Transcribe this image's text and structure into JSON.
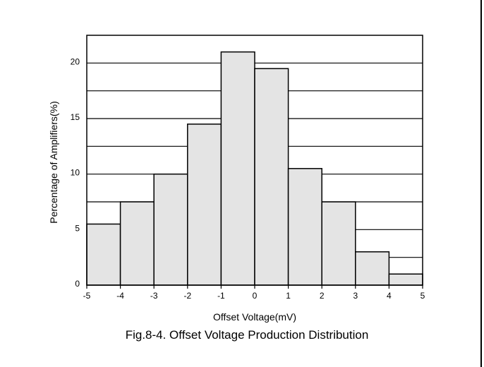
{
  "chart_data": {
    "type": "bar",
    "title": "",
    "xlabel": "Offset Voltage(mV)",
    "ylabel": "Percentage of Amplifiers(%)",
    "caption": "Fig.8-4. Offset Voltage Production Distribution",
    "x_ticks": [
      "-5",
      "-4",
      "-3",
      "-2",
      "-1",
      "0",
      "1",
      "2",
      "3",
      "4",
      "5"
    ],
    "y_ticks": [
      "0",
      "5",
      "10",
      "15",
      "20"
    ],
    "xlim": [
      -5,
      5
    ],
    "ylim": [
      0,
      22.5
    ],
    "bins": [
      {
        "from": -5,
        "to": -4,
        "value": 5.5
      },
      {
        "from": -4,
        "to": -3,
        "value": 7.5
      },
      {
        "from": -3,
        "to": -2,
        "value": 10
      },
      {
        "from": -2,
        "to": -1,
        "value": 14.5
      },
      {
        "from": -1,
        "to": 0,
        "value": 21
      },
      {
        "from": 0,
        "to": 1,
        "value": 19.5
      },
      {
        "from": 1,
        "to": 2,
        "value": 10.5
      },
      {
        "from": 2,
        "to": 3,
        "value": 7.5
      },
      {
        "from": 3,
        "to": 4,
        "value": 3
      },
      {
        "from": 4,
        "to": 5,
        "value": 1
      }
    ],
    "gridlines_y": [
      2.5,
      5,
      7.5,
      10,
      12.5,
      15,
      17.5,
      20
    ],
    "grid": true,
    "bar_color": "#e4e4e4",
    "line_color": "#000000"
  }
}
